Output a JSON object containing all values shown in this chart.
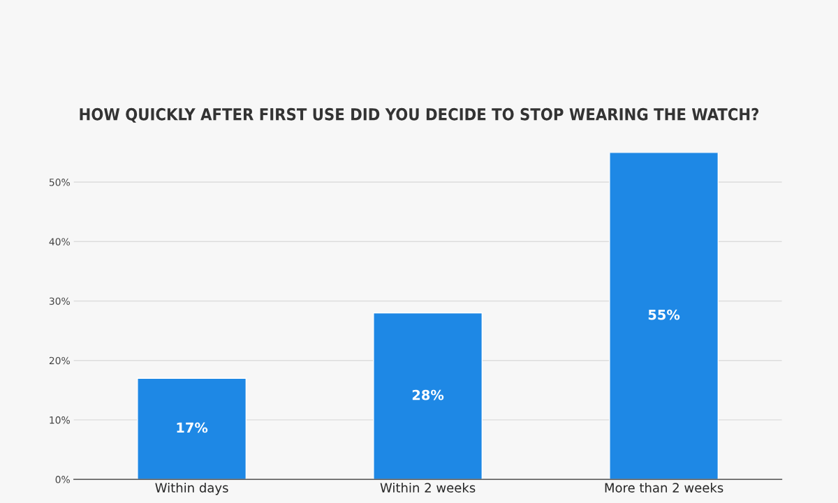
{
  "chart_data": {
    "type": "bar",
    "title": "HOW QUICKLY AFTER FIRST USE DID YOU DECIDE TO STOP WEARING THE WATCH?",
    "categories": [
      "Within days",
      "Within 2 weeks",
      "More than 2 weeks"
    ],
    "values": [
      17,
      28,
      55
    ],
    "color": "#1e88e5",
    "value_labels": [
      "17%",
      "28%",
      "55%"
    ],
    "ylim": [
      0,
      55
    ],
    "yticks": [
      {
        "value": 0,
        "label": "0%"
      },
      {
        "value": 10,
        "label": "10%"
      },
      {
        "value": 20,
        "label": "20%"
      },
      {
        "value": 30,
        "label": "30%"
      },
      {
        "value": 40,
        "label": "40%"
      },
      {
        "value": 50,
        "label": "50%"
      }
    ],
    "grid": "y"
  }
}
